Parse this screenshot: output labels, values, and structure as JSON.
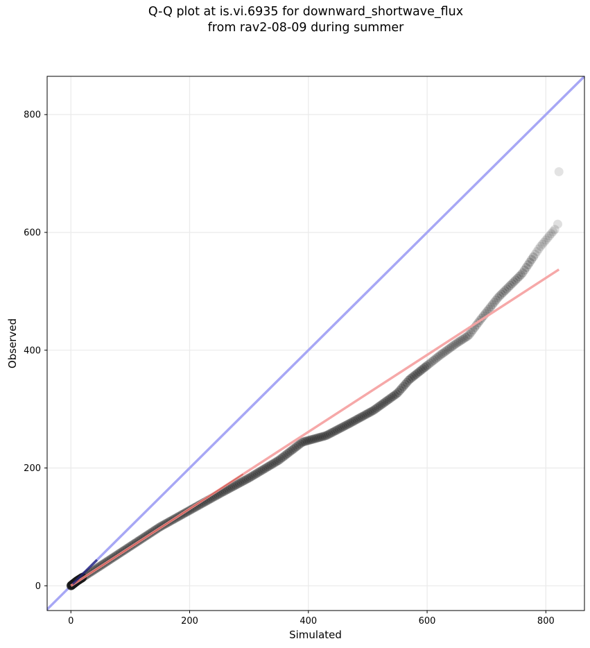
{
  "chart_data": {
    "type": "scatter",
    "title_line1": "Q-Q plot at is.vi.6935 for downward_shortwave_flux",
    "title_line2": "from rav2-08-09 during summer",
    "xlabel": "Simulated",
    "ylabel": "Observed",
    "xlim": [
      -40,
      865
    ],
    "ylim": [
      -42,
      865
    ],
    "xticks": [
      0,
      200,
      400,
      600,
      800
    ],
    "yticks": [
      0,
      200,
      400,
      600,
      800
    ],
    "grid": true,
    "quantile_anchors": [
      [
        0,
        0
      ],
      [
        10,
        8
      ],
      [
        50,
        34
      ],
      [
        100,
        67
      ],
      [
        150,
        100
      ],
      [
        200,
        128
      ],
      [
        250,
        156
      ],
      [
        300,
        183
      ],
      [
        350,
        213
      ],
      [
        390,
        244
      ],
      [
        430,
        255
      ],
      [
        470,
        276
      ],
      [
        510,
        298
      ],
      [
        550,
        327
      ],
      [
        570,
        350
      ],
      [
        600,
        374
      ],
      [
        620,
        390
      ],
      [
        650,
        412
      ],
      [
        670,
        425
      ],
      [
        690,
        452
      ],
      [
        720,
        490
      ],
      [
        760,
        530
      ],
      [
        790,
        575
      ],
      [
        815,
        605
      ],
      [
        820,
        614
      ],
      [
        822,
        703
      ]
    ],
    "regression_line": {
      "x": [
        0,
        822
      ],
      "y": [
        0,
        537
      ]
    },
    "reference_line": {
      "label": "1:1"
    },
    "colors": {
      "points": "#1a1a1a",
      "regression": "#f5a3a3",
      "reference": "#a7a7f5",
      "low_segment": "#23237a",
      "grid": "#ebebeb"
    }
  }
}
